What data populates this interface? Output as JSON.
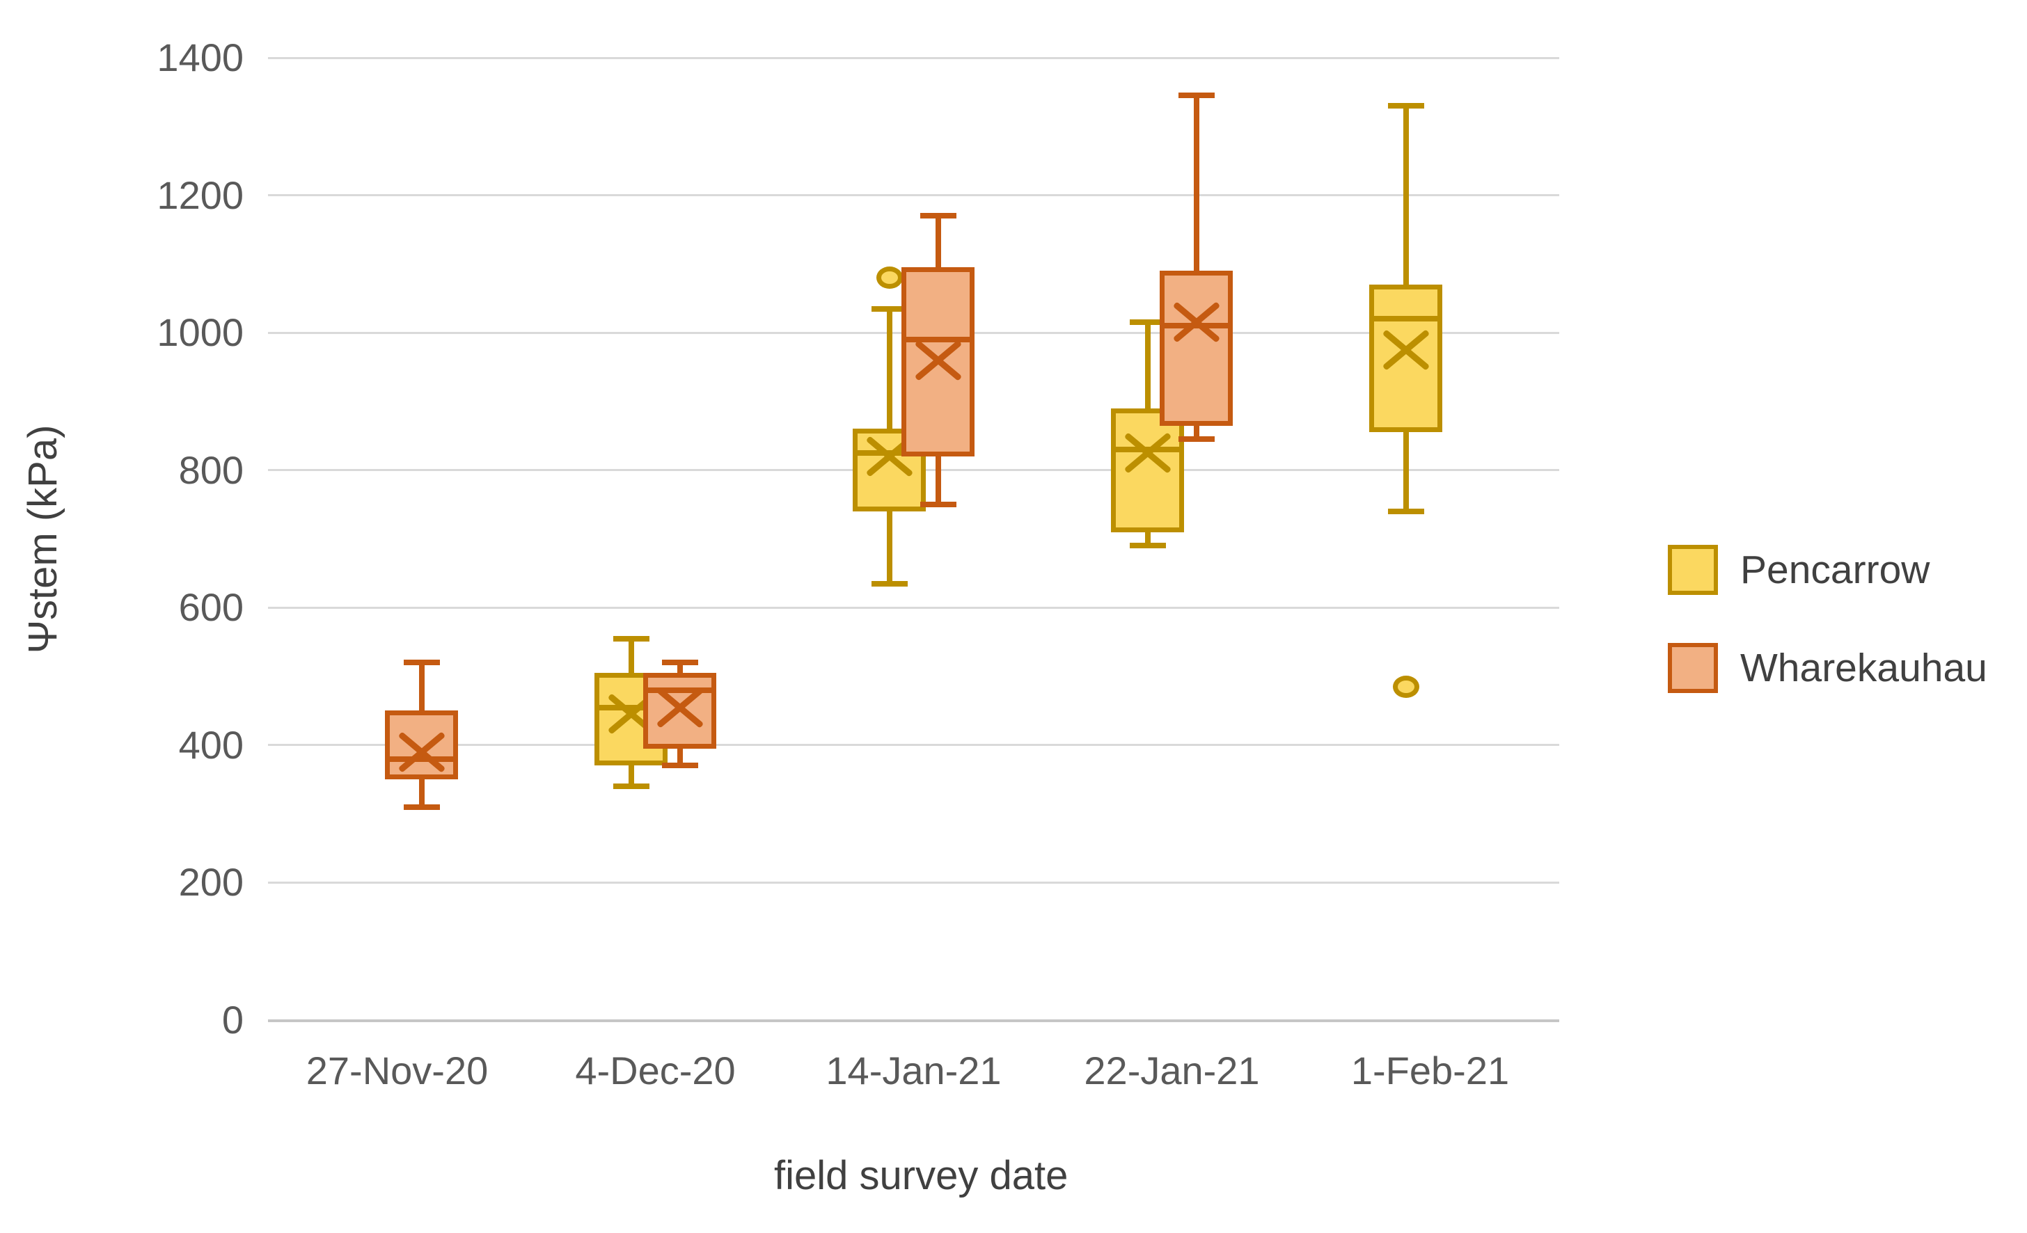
{
  "chart_data": {
    "type": "boxplot",
    "title": "",
    "xlabel": "field survey date",
    "ylabel": "Ψstem (kPa)",
    "ylim": [
      0,
      1400
    ],
    "yticks": [
      "0",
      "200",
      "400",
      "600",
      "800",
      "1000",
      "1200",
      "1400"
    ],
    "grid": true,
    "legend_position": "right",
    "categories": [
      "27-Nov-20",
      "4-Dec-20",
      "14-Jan-21",
      "22-Jan-21",
      "1-Feb-21"
    ],
    "series": [
      {
        "name": "Pencarrow",
        "fill_color": "#FBD860",
        "line_color": "#BC8F00",
        "boxes": [
          null,
          {
            "min": 340,
            "q1": 370,
            "median": 455,
            "mean": 445,
            "q3": 505,
            "max": 555,
            "outliers": []
          },
          {
            "min": 635,
            "q1": 740,
            "median": 825,
            "mean": 820,
            "q3": 860,
            "max": 1035,
            "outliers": [
              1080
            ]
          },
          {
            "min": 690,
            "q1": 710,
            "median": 830,
            "mean": 825,
            "q3": 890,
            "max": 1015,
            "outliers": []
          },
          {
            "min": 740,
            "q1": 855,
            "median": 1020,
            "mean": 975,
            "q3": 1070,
            "max": 1330,
            "outliers": [
              485
            ]
          }
        ]
      },
      {
        "name": "Wharekauhau",
        "fill_color": "#F2B083",
        "line_color": "#C55A11",
        "boxes": [
          {
            "min": 310,
            "q1": 350,
            "median": 380,
            "mean": 390,
            "q3": 450,
            "max": 520,
            "outliers": []
          },
          {
            "min": 370,
            "q1": 395,
            "median": 480,
            "mean": 455,
            "q3": 505,
            "max": 520,
            "outliers": []
          },
          {
            "min": 750,
            "q1": 820,
            "median": 990,
            "mean": 960,
            "q3": 1095,
            "max": 1170,
            "outliers": []
          },
          {
            "min": 845,
            "q1": 865,
            "median": 1010,
            "mean": 1015,
            "q3": 1090,
            "max": 1345,
            "outliers": []
          },
          null
        ]
      }
    ]
  },
  "colors": {
    "gridline": "#d9d9d9",
    "axis_line": "#c6c6c6",
    "tick_label": "#595959",
    "axis_title": "#404040"
  }
}
